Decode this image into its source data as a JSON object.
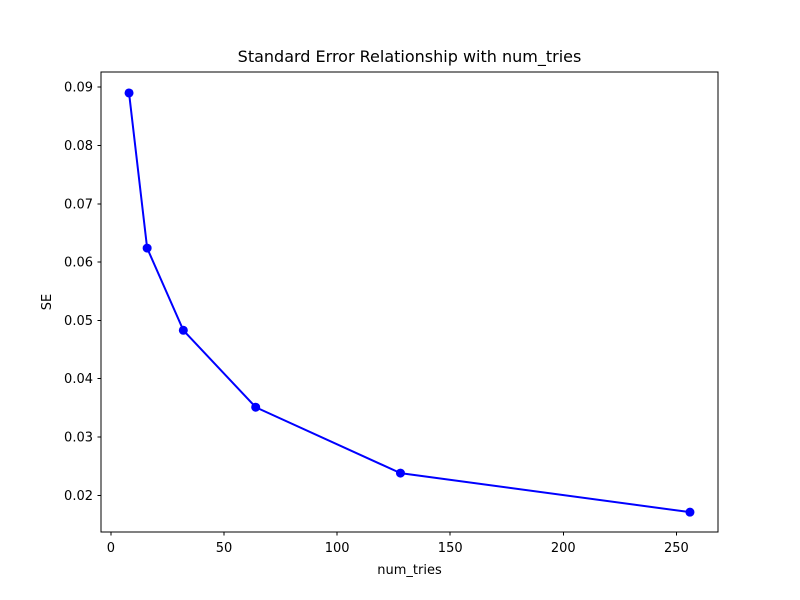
{
  "chart_data": {
    "type": "line",
    "title": "Standard Error Relationship with num_tries",
    "xlabel": "num_tries",
    "ylabel": "SE",
    "x": [
      8,
      16,
      32,
      64,
      128,
      256
    ],
    "y": [
      0.089,
      0.0624,
      0.0483,
      0.0351,
      0.0238,
      0.0171
    ],
    "xlim": [
      -4.4,
      268.4
    ],
    "ylim": [
      0.0137,
      0.0926
    ],
    "xtick_values": [
      0,
      50,
      100,
      150,
      200,
      250
    ],
    "xtick_labels": [
      "0",
      "50",
      "100",
      "150",
      "200",
      "250"
    ],
    "ytick_values": [
      0.02,
      0.03,
      0.04,
      0.05,
      0.06,
      0.07,
      0.08,
      0.09
    ],
    "ytick_labels": [
      "0.02",
      "0.03",
      "0.04",
      "0.05",
      "0.06",
      "0.07",
      "0.08",
      "0.09"
    ],
    "grid": false,
    "legend_position": "none",
    "line_color": "#0000ff",
    "marker": "circle",
    "marker_color": "#0000ff",
    "axis_color": "#000000",
    "text_color": "#000000",
    "background_color": "#ffffff"
  }
}
